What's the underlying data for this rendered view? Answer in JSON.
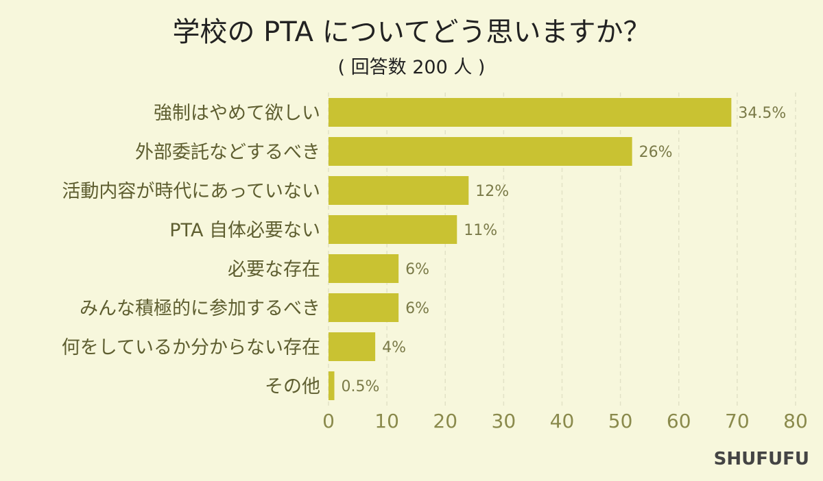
{
  "chart_data": {
    "type": "bar",
    "orientation": "horizontal",
    "title": "学校の PTA についてどう思いますか？",
    "subtitle": "( 回答数 200 人 )",
    "categories": [
      "強制はやめて欲しい",
      "外部委託などするべき",
      "活動内容が時代にあっていない",
      "PTA 自体必要ない",
      "必要な存在",
      "みんな積極的に参加するべき",
      "何をしているか分からない存在",
      "その他"
    ],
    "values": [
      69,
      52,
      24,
      22,
      12,
      12,
      8,
      1
    ],
    "data_labels": [
      "34.5%",
      "26%",
      "12%",
      "11%",
      "6%",
      "6%",
      "4%",
      "0.5%"
    ],
    "xlim": [
      0,
      80
    ],
    "xticks": [
      0,
      10,
      20,
      30,
      40,
      50,
      60,
      70,
      80
    ],
    "grid": true,
    "legend": "none",
    "colors": {
      "bar": "#c9c232",
      "background": "#f7f7dc",
      "text": "#5e5e30",
      "tick": "#8a8a4c",
      "label": "#7a7a48"
    }
  },
  "credit": "SHUFUFU"
}
